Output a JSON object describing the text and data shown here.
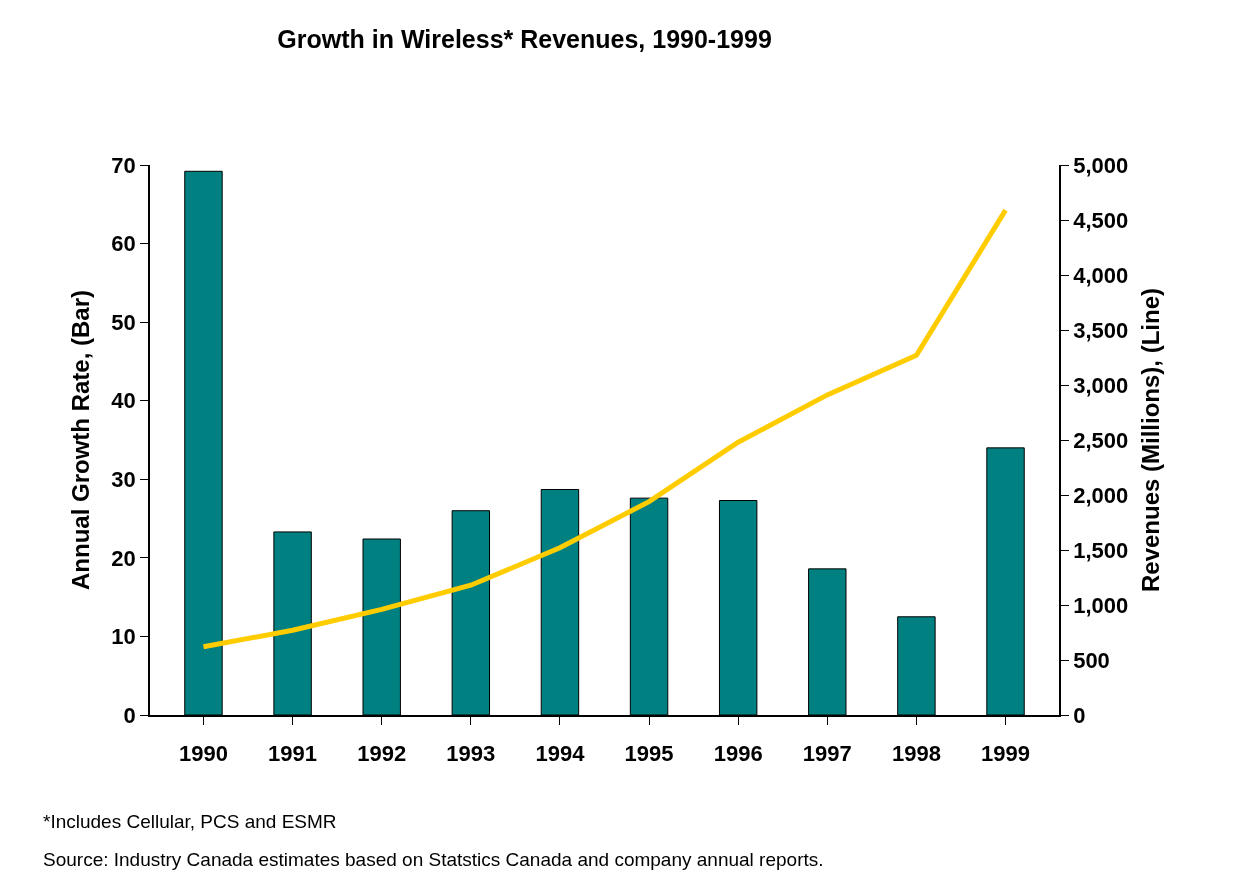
{
  "chart_data": {
    "type": "bar",
    "title": "Growth in Wireless* Revenues, 1990-1999",
    "categories": [
      "1990",
      "1991",
      "1992",
      "1993",
      "1994",
      "1995",
      "1996",
      "1997",
      "1998",
      "1999"
    ],
    "series": [
      {
        "color": "#008080",
        "values": [
          69.2,
          23.3,
          22.4,
          26.0,
          28.7,
          27.6,
          27.3,
          18.6,
          12.5,
          34.0
        ]
      },
      {
        "type": "line",
        "axis": "y2",
        "color": "#ffcc00",
        "values": [
          620,
          770,
          960,
          1180,
          1520,
          1940,
          2480,
          2910,
          3270,
          4590
        ]
      }
    ],
    "ylabel": "Annual Growth Rate, (Bar)",
    "y2label": "Revenues (Millions), (Line)",
    "ylim": [
      0,
      70
    ],
    "yticks": [
      0,
      10,
      20,
      30,
      40,
      50,
      60,
      70
    ],
    "y2lim": [
      0,
      5000
    ],
    "y2ticks": [
      0,
      500,
      {
        "value": 1000,
        "label": "1,000"
      },
      {
        "value": 1500,
        "label": "1,500"
      },
      {
        "value": 2000,
        "label": "2,000"
      },
      {
        "value": 2500,
        "label": "2,500"
      },
      {
        "value": 3000,
        "label": "3,000"
      },
      {
        "value": 3500,
        "label": "3,500"
      },
      {
        "value": 4000,
        "label": "4,000"
      },
      {
        "value": 4500,
        "label": "4,500"
      },
      {
        "value": 5000,
        "label": "5,000"
      }
    ],
    "legend": false,
    "annotations": [
      "*Includes Cellular, PCS and ESMR",
      "Source: Industry Canada estimates based on Statstics Canada and company annual reports."
    ]
  }
}
